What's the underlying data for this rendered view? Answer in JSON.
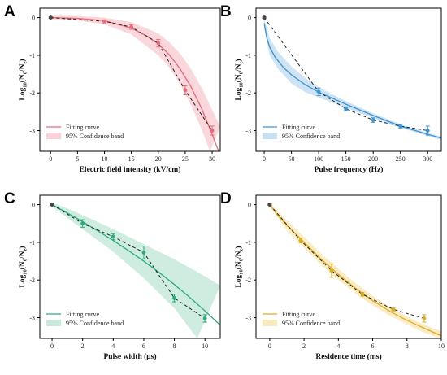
{
  "chart_data": [
    {
      "type": "line",
      "panel": "A",
      "color": "#e8697a",
      "band_color": "#f8c9cf",
      "xlabel": "Electric field intensity (kV/cm)",
      "ylabel_main": "Log",
      "ylabel_sub1": "10",
      "ylabel_mid": "(N",
      "ylabel_sub2": "0",
      "ylabel_mid2": "/N",
      "ylabel_sub3": "e",
      "ylabel_end": ")",
      "xlim": [
        -2,
        31.5
      ],
      "ylim": [
        -3.55,
        0.25
      ],
      "xticks": [
        "0",
        "5",
        "10",
        "15",
        "20",
        "25",
        "30"
      ],
      "xtick_values": [
        0,
        5,
        10,
        15,
        20,
        25,
        30
      ],
      "yticks": [
        "0",
        "-1",
        "-2",
        "-3"
      ],
      "ytick_values": [
        0,
        -1,
        -2,
        -3
      ],
      "points": [
        {
          "x": 0,
          "y": 0,
          "err": 0.02
        },
        {
          "x": 10,
          "y": -0.1,
          "err": 0.04
        },
        {
          "x": 15,
          "y": -0.25,
          "err": 0.06
        },
        {
          "x": 20,
          "y": -0.68,
          "err": 0.1
        },
        {
          "x": 25,
          "y": -1.93,
          "err": 0.12
        },
        {
          "x": 30,
          "y": -3.0,
          "err": 0.12
        }
      ],
      "fit": [
        [
          0,
          0
        ],
        [
          5,
          -0.02
        ],
        [
          10,
          -0.08
        ],
        [
          15,
          -0.28
        ],
        [
          18,
          -0.5
        ],
        [
          20,
          -0.7
        ],
        [
          22,
          -0.98
        ],
        [
          24,
          -1.35
        ],
        [
          26,
          -1.82
        ],
        [
          28,
          -2.4
        ],
        [
          30,
          -3.1
        ],
        [
          31.2,
          -3.55
        ]
      ],
      "band_upper": [
        [
          0,
          0.05
        ],
        [
          5,
          0.04
        ],
        [
          10,
          0.0
        ],
        [
          15,
          -0.12
        ],
        [
          20,
          -0.42
        ],
        [
          22,
          -0.65
        ],
        [
          24,
          -0.95
        ],
        [
          26,
          -1.35
        ],
        [
          28,
          -1.85
        ],
        [
          30,
          -2.45
        ],
        [
          31.5,
          -2.9
        ]
      ],
      "band_lower": [
        [
          0,
          -0.05
        ],
        [
          5,
          -0.08
        ],
        [
          10,
          -0.18
        ],
        [
          15,
          -0.45
        ],
        [
          20,
          -1.0
        ],
        [
          22,
          -1.32
        ],
        [
          24,
          -1.75
        ],
        [
          26,
          -2.3
        ],
        [
          28,
          -2.95
        ],
        [
          29.6,
          -3.55
        ]
      ],
      "legend": {
        "fit": "Fitting curve",
        "band": "95% Confidence band",
        "position": "bottom-left"
      }
    },
    {
      "type": "line",
      "panel": "B",
      "color": "#3d94d3",
      "band_color": "#bedbf2",
      "xlabel": "Pulse frequency (Hz)",
      "ylabel_main": "Log",
      "ylabel_sub1": "10",
      "ylabel_mid": "(N",
      "ylabel_sub2": "0",
      "ylabel_mid2": "/N",
      "ylabel_sub3": "e",
      "ylabel_end": ")",
      "xlim": [
        -15,
        325
      ],
      "ylim": [
        -3.55,
        0.25
      ],
      "xticks": [
        "0",
        "50",
        "100",
        "150",
        "200",
        "250",
        "300"
      ],
      "xtick_values": [
        0,
        50,
        100,
        150,
        200,
        250,
        300
      ],
      "yticks": [
        "0",
        "-1",
        "-2",
        "-3"
      ],
      "ytick_values": [
        0,
        -1,
        -2,
        -3
      ],
      "points": [
        {
          "x": 0,
          "y": 0,
          "err": 0.02
        },
        {
          "x": 100,
          "y": -1.97,
          "err": 0.1
        },
        {
          "x": 150,
          "y": -2.42,
          "err": 0.05
        },
        {
          "x": 200,
          "y": -2.72,
          "err": 0.06
        },
        {
          "x": 250,
          "y": -2.88,
          "err": 0.05
        },
        {
          "x": 300,
          "y": -3.0,
          "err": 0.12
        }
      ],
      "fit": [
        [
          0,
          -0.15
        ],
        [
          5,
          -0.55
        ],
        [
          10,
          -0.78
        ],
        [
          20,
          -1.05
        ],
        [
          35,
          -1.32
        ],
        [
          50,
          -1.52
        ],
        [
          75,
          -1.78
        ],
        [
          100,
          -1.98
        ],
        [
          150,
          -2.3
        ],
        [
          200,
          -2.6
        ],
        [
          250,
          -2.88
        ],
        [
          300,
          -3.1
        ],
        [
          325,
          -3.2
        ]
      ],
      "band_upper": [
        [
          0,
          -0.02
        ],
        [
          10,
          -0.55
        ],
        [
          25,
          -0.9
        ],
        [
          50,
          -1.3
        ],
        [
          75,
          -1.6
        ],
        [
          100,
          -1.85
        ],
        [
          150,
          -2.22
        ],
        [
          200,
          -2.54
        ],
        [
          250,
          -2.83
        ],
        [
          300,
          -3.06
        ],
        [
          325,
          -3.16
        ]
      ],
      "band_lower": [
        [
          0,
          -0.3
        ],
        [
          10,
          -1.0
        ],
        [
          25,
          -1.35
        ],
        [
          50,
          -1.75
        ],
        [
          75,
          -1.98
        ],
        [
          100,
          -2.12
        ],
        [
          150,
          -2.4
        ],
        [
          200,
          -2.67
        ],
        [
          250,
          -2.93
        ],
        [
          300,
          -3.14
        ],
        [
          325,
          -3.25
        ]
      ],
      "legend": {
        "fit": "Fitting curve",
        "band": "95% Confidence band",
        "position": "bottom-left"
      }
    },
    {
      "type": "line",
      "panel": "C",
      "color": "#2bab7c",
      "band_color": "#bde6d4",
      "xlabel": "Pulse width (μs)",
      "ylabel_main": "Log",
      "ylabel_sub1": "10",
      "ylabel_mid": "(N",
      "ylabel_sub2": "0",
      "ylabel_mid2": "/N",
      "ylabel_sub3": "e",
      "ylabel_end": ")",
      "xlim": [
        -0.8,
        11
      ],
      "ylim": [
        -3.55,
        0.25
      ],
      "xticks": [
        "0",
        "2",
        "4",
        "6",
        "8",
        "10"
      ],
      "xtick_values": [
        0,
        2,
        4,
        6,
        8,
        10
      ],
      "yticks": [
        "0",
        "-1",
        "-2",
        "-3"
      ],
      "ytick_values": [
        0,
        -1,
        -2,
        -3
      ],
      "points": [
        {
          "x": 0,
          "y": 0,
          "err": 0.02
        },
        {
          "x": 2,
          "y": -0.5,
          "err": 0.1
        },
        {
          "x": 4,
          "y": -0.85,
          "err": 0.08
        },
        {
          "x": 6,
          "y": -1.27,
          "err": 0.17
        },
        {
          "x": 8,
          "y": -2.48,
          "err": 0.1
        },
        {
          "x": 10,
          "y": -3.02,
          "err": 0.1
        }
      ],
      "fit": [
        [
          0,
          0
        ],
        [
          1,
          -0.22
        ],
        [
          2,
          -0.45
        ],
        [
          3,
          -0.7
        ],
        [
          4,
          -0.95
        ],
        [
          5,
          -1.22
        ],
        [
          6,
          -1.5
        ],
        [
          7,
          -1.8
        ],
        [
          8,
          -2.12
        ],
        [
          9,
          -2.46
        ],
        [
          10,
          -2.82
        ],
        [
          11,
          -3.2
        ]
      ],
      "band_upper": [
        [
          0,
          0.05
        ],
        [
          1,
          -0.1
        ],
        [
          2,
          -0.28
        ],
        [
          4,
          -0.65
        ],
        [
          6,
          -1.05
        ],
        [
          8,
          -1.45
        ],
        [
          10,
          -1.9
        ],
        [
          11,
          -2.15
        ]
      ],
      "band_lower": [
        [
          0,
          -0.05
        ],
        [
          1,
          -0.35
        ],
        [
          2,
          -0.65
        ],
        [
          4,
          -1.25
        ],
        [
          6,
          -1.95
        ],
        [
          8,
          -2.75
        ],
        [
          9.5,
          -3.55
        ]
      ],
      "legend": {
        "fit": "Fitting curve",
        "band": "95% Confidence band",
        "position": "bottom-left"
      }
    },
    {
      "type": "line",
      "panel": "D",
      "color": "#dfad22",
      "band_color": "#f8e6b2",
      "xlabel": "Residence time (ms)",
      "ylabel_main": "Log",
      "ylabel_sub1": "10",
      "ylabel_mid": "(N",
      "ylabel_sub2": "0",
      "ylabel_mid2": "/N",
      "ylabel_sub3": "e",
      "ylabel_end": ")",
      "xlim": [
        -0.8,
        10
      ],
      "ylim": [
        -3.55,
        0.25
      ],
      "xticks": [
        "0",
        "2",
        "4",
        "6",
        "8",
        "10"
      ],
      "xtick_values": [
        0,
        2,
        4,
        6,
        8,
        10
      ],
      "yticks": [
        "0",
        "-1",
        "-2",
        "-3"
      ],
      "ytick_values": [
        0,
        -1,
        -2,
        -3
      ],
      "points": [
        {
          "x": 0,
          "y": 0,
          "err": 0.02
        },
        {
          "x": 1.8,
          "y": -0.95,
          "err": 0.06
        },
        {
          "x": 3.6,
          "y": -1.75,
          "err": 0.18
        },
        {
          "x": 5.4,
          "y": -2.38,
          "err": 0.05
        },
        {
          "x": 7.2,
          "y": -2.78,
          "err": 0.04
        },
        {
          "x": 9.0,
          "y": -3.02,
          "err": 0.1
        }
      ],
      "fit": [
        [
          0,
          0
        ],
        [
          0.5,
          -0.3
        ],
        [
          1,
          -0.55
        ],
        [
          2,
          -1.0
        ],
        [
          3,
          -1.45
        ],
        [
          4,
          -1.85
        ],
        [
          5,
          -2.22
        ],
        [
          6,
          -2.55
        ],
        [
          7,
          -2.83
        ],
        [
          8,
          -3.07
        ],
        [
          9,
          -3.28
        ],
        [
          10,
          -3.48
        ]
      ],
      "band_upper": [
        [
          0,
          0.05
        ],
        [
          1,
          -0.42
        ],
        [
          2,
          -0.85
        ],
        [
          3,
          -1.3
        ],
        [
          4,
          -1.7
        ],
        [
          5,
          -2.08
        ],
        [
          6,
          -2.42
        ],
        [
          7,
          -2.72
        ],
        [
          8,
          -2.97
        ],
        [
          9,
          -3.18
        ],
        [
          10,
          -3.36
        ]
      ],
      "band_lower": [
        [
          0,
          -0.05
        ],
        [
          1,
          -0.68
        ],
        [
          2,
          -1.15
        ],
        [
          3,
          -1.6
        ],
        [
          4,
          -2.0
        ],
        [
          5,
          -2.36
        ],
        [
          6,
          -2.68
        ],
        [
          7,
          -2.95
        ],
        [
          8,
          -3.18
        ],
        [
          9,
          -3.4
        ],
        [
          10,
          -3.55
        ]
      ],
      "legend": {
        "fit": "Fitting curve",
        "band": "95% Confidence band",
        "position": "bottom-left"
      }
    }
  ]
}
